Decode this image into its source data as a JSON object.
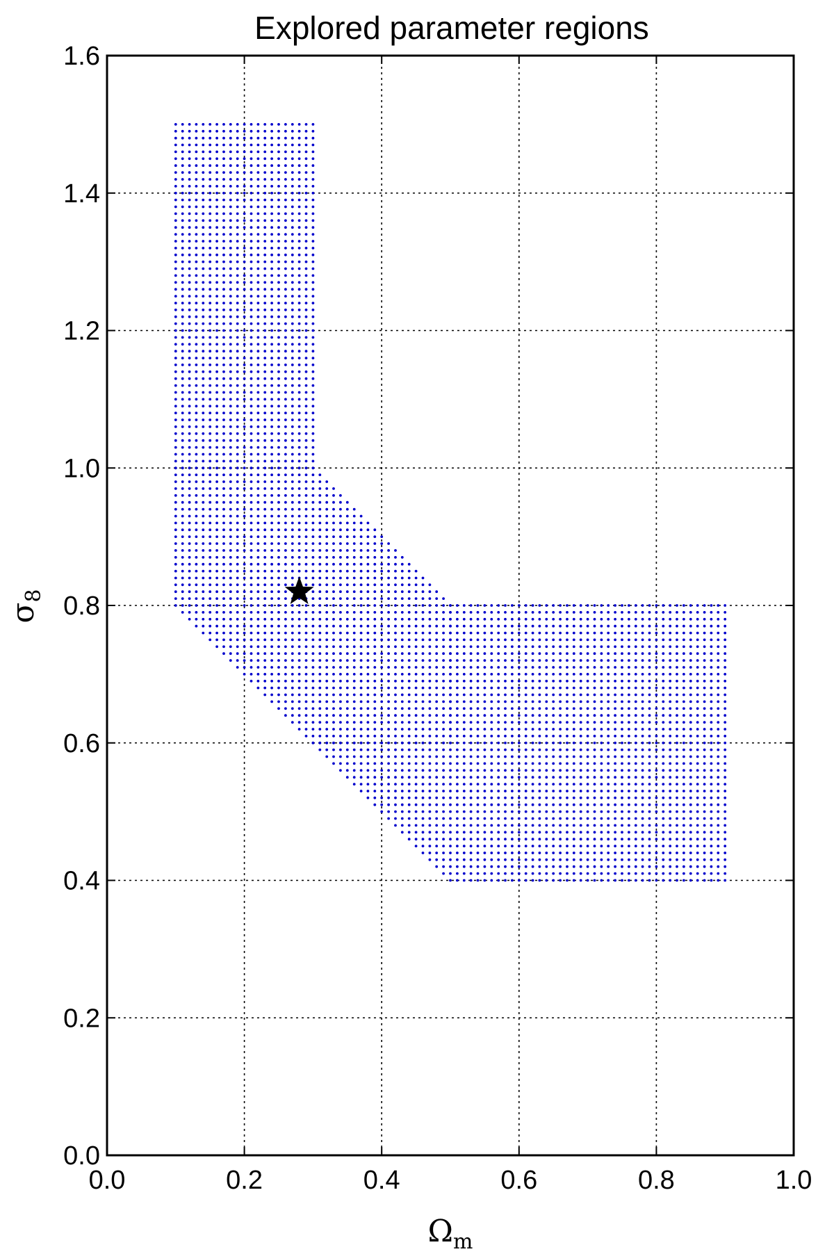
{
  "chart_data": {
    "type": "scatter",
    "title": "Explored parameter regions",
    "xlabel": "Ω",
    "xlabel_subscript": "m",
    "ylabel": "σ",
    "ylabel_subscript": "8",
    "xlim": [
      0.0,
      1.0
    ],
    "ylim": [
      0.0,
      1.6
    ],
    "xticks": [
      "0.0",
      "0.2",
      "0.4",
      "0.6",
      "0.8",
      "1.0"
    ],
    "yticks": [
      "0.0",
      "0.2",
      "0.4",
      "0.6",
      "0.8",
      "1.0",
      "1.2",
      "1.4",
      "1.6"
    ],
    "grid": true,
    "series": [
      {
        "color": "#0000cc",
        "grid_spacing": 0.01,
        "regions": [
          {
            "vertices": [
              [
                0.1,
                1.0
              ],
              [
                0.3,
                1.0
              ],
              [
                0.3,
                1.5
              ],
              [
                0.1,
                1.5
              ]
            ]
          },
          {
            "vertices": [
              [
                0.1,
                0.8
              ],
              [
                0.1,
                1.0
              ],
              [
                0.3,
                1.0
              ],
              [
                0.5,
                0.8
              ],
              [
                0.5,
                0.6
              ],
              [
                0.3,
                0.6
              ]
            ]
          },
          {
            "vertices": [
              [
                0.3,
                0.6
              ],
              [
                0.5,
                0.6
              ],
              [
                0.5,
                0.8
              ],
              [
                0.9,
                0.8
              ],
              [
                0.9,
                0.4
              ],
              [
                0.5,
                0.4
              ]
            ]
          }
        ]
      },
      {
        "color": "#000000",
        "marker": "star",
        "points": [
          [
            0.28,
            0.82
          ]
        ]
      }
    ]
  }
}
